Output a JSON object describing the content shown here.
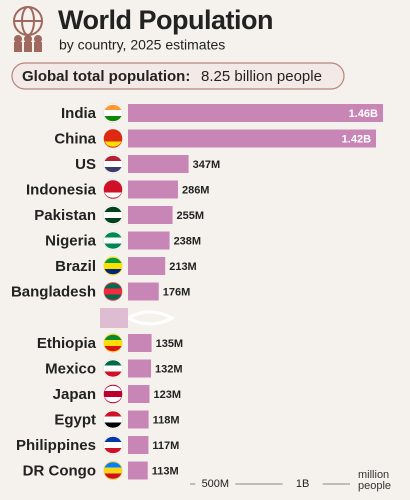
{
  "chart_data": {
    "type": "bar",
    "orientation": "horizontal",
    "title": "World Population",
    "subtitle": "by country, 2025 estimates",
    "annotation": {
      "label": "Global total population:",
      "value": "8.25 billion people"
    },
    "categories": [
      "India",
      "China",
      "US",
      "Indonesia",
      "Pakistan",
      "Nigeria",
      "Brazil",
      "Bangladesh",
      "Ethiopia",
      "Mexico",
      "Japan",
      "Egypt",
      "Philippines",
      "DR Congo"
    ],
    "values": [
      1460,
      1420,
      347,
      286,
      255,
      238,
      213,
      176,
      135,
      132,
      123,
      118,
      117,
      113
    ],
    "value_labels": [
      "1.46B",
      "1.42B",
      "347M",
      "286M",
      "255M",
      "238M",
      "213M",
      "176M",
      "135M",
      "132M",
      "123M",
      "118M",
      "117M",
      "113M"
    ],
    "color": "#c886b6",
    "x_label": "million people",
    "xlim": [
      0,
      1500
    ],
    "xticks": [
      {
        "value": 500,
        "label": "500M"
      },
      {
        "value": 1000,
        "label": "1B"
      }
    ]
  }
}
